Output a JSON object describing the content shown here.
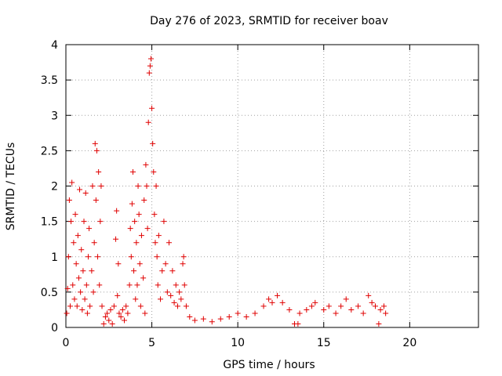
{
  "chart_data": {
    "type": "scatter",
    "title": "Day 276 of 2023, SRMTID for receiver boav",
    "xlabel": "GPS time / hours",
    "ylabel": "SRMTID / TECUs",
    "xlim": [
      0,
      24
    ],
    "ylim": [
      0,
      4
    ],
    "xticks": [
      0,
      5,
      10,
      15,
      20
    ],
    "yticks": [
      0,
      0.5,
      1,
      1.5,
      2,
      2.5,
      3,
      3.5,
      4
    ],
    "grid": true,
    "marker": "plus",
    "color": "#e00000",
    "series": [
      {
        "name": "SRMTID",
        "points": [
          [
            0.05,
            0.2
          ],
          [
            0.1,
            0.55
          ],
          [
            0.15,
            1.0
          ],
          [
            0.2,
            1.8
          ],
          [
            0.25,
            0.3
          ],
          [
            0.3,
            1.5
          ],
          [
            0.35,
            2.05
          ],
          [
            0.4,
            0.6
          ],
          [
            0.45,
            1.2
          ],
          [
            0.5,
            0.4
          ],
          [
            0.55,
            1.6
          ],
          [
            0.6,
            0.9
          ],
          [
            0.65,
            0.3
          ],
          [
            0.7,
            1.3
          ],
          [
            0.75,
            0.7
          ],
          [
            0.8,
            1.95
          ],
          [
            0.85,
            0.5
          ],
          [
            0.9,
            1.1
          ],
          [
            0.95,
            0.25
          ],
          [
            1.0,
            0.8
          ],
          [
            1.05,
            1.5
          ],
          [
            1.1,
            0.4
          ],
          [
            1.15,
            1.9
          ],
          [
            1.2,
            0.6
          ],
          [
            1.25,
            0.2
          ],
          [
            1.3,
            1.0
          ],
          [
            1.35,
            1.4
          ],
          [
            1.4,
            0.3
          ],
          [
            1.5,
            0.8
          ],
          [
            1.55,
            2.0
          ],
          [
            1.6,
            0.5
          ],
          [
            1.65,
            1.2
          ],
          [
            1.7,
            2.6
          ],
          [
            1.75,
            1.8
          ],
          [
            1.8,
            2.5
          ],
          [
            1.85,
            1.0
          ],
          [
            1.9,
            2.2
          ],
          [
            1.95,
            0.6
          ],
          [
            2.0,
            1.5
          ],
          [
            2.05,
            2.0
          ],
          [
            2.1,
            0.3
          ],
          [
            2.2,
            0.05
          ],
          [
            2.3,
            0.15
          ],
          [
            2.4,
            0.2
          ],
          [
            2.5,
            0.1
          ],
          [
            2.6,
            0.25
          ],
          [
            2.7,
            0.05
          ],
          [
            2.8,
            0.3
          ],
          [
            2.9,
            1.25
          ],
          [
            2.95,
            1.65
          ],
          [
            3.0,
            0.45
          ],
          [
            3.05,
            0.9
          ],
          [
            3.1,
            0.2
          ],
          [
            3.2,
            0.15
          ],
          [
            3.3,
            0.25
          ],
          [
            3.4,
            0.1
          ],
          [
            3.5,
            0.3
          ],
          [
            3.6,
            0.2
          ],
          [
            3.7,
            0.6
          ],
          [
            3.75,
            1.4
          ],
          [
            3.8,
            1.0
          ],
          [
            3.85,
            1.75
          ],
          [
            3.9,
            2.2
          ],
          [
            3.95,
            0.8
          ],
          [
            4.0,
            1.5
          ],
          [
            4.05,
            0.4
          ],
          [
            4.1,
            1.2
          ],
          [
            4.15,
            0.6
          ],
          [
            4.2,
            2.0
          ],
          [
            4.25,
            1.6
          ],
          [
            4.3,
            0.9
          ],
          [
            4.35,
            0.3
          ],
          [
            4.4,
            1.3
          ],
          [
            4.5,
            0.7
          ],
          [
            4.55,
            1.8
          ],
          [
            4.6,
            0.2
          ],
          [
            4.65,
            2.3
          ],
          [
            4.7,
            2.0
          ],
          [
            4.75,
            1.4
          ],
          [
            4.8,
            2.9
          ],
          [
            4.85,
            3.6
          ],
          [
            4.9,
            3.7
          ],
          [
            4.95,
            3.8
          ],
          [
            5.0,
            3.1
          ],
          [
            5.05,
            2.6
          ],
          [
            5.1,
            2.2
          ],
          [
            5.15,
            1.6
          ],
          [
            5.2,
            1.2
          ],
          [
            5.25,
            2.0
          ],
          [
            5.3,
            1.0
          ],
          [
            5.35,
            0.6
          ],
          [
            5.4,
            1.3
          ],
          [
            5.5,
            0.4
          ],
          [
            5.6,
            0.8
          ],
          [
            5.7,
            1.5
          ],
          [
            5.8,
            0.9
          ],
          [
            5.9,
            0.5
          ],
          [
            6.0,
            1.2
          ],
          [
            6.1,
            0.45
          ],
          [
            6.2,
            0.8
          ],
          [
            6.3,
            0.35
          ],
          [
            6.4,
            0.6
          ],
          [
            6.5,
            0.3
          ],
          [
            6.6,
            0.5
          ],
          [
            6.7,
            0.4
          ],
          [
            6.8,
            0.9
          ],
          [
            6.85,
            1.0
          ],
          [
            6.9,
            0.6
          ],
          [
            7.0,
            0.3
          ],
          [
            7.2,
            0.15
          ],
          [
            7.5,
            0.1
          ],
          [
            8.0,
            0.12
          ],
          [
            8.5,
            0.08
          ],
          [
            9.0,
            0.12
          ],
          [
            9.5,
            0.15
          ],
          [
            10.0,
            0.2
          ],
          [
            10.5,
            0.15
          ],
          [
            11.0,
            0.2
          ],
          [
            11.5,
            0.3
          ],
          [
            11.8,
            0.4
          ],
          [
            12.0,
            0.35
          ],
          [
            12.3,
            0.45
          ],
          [
            12.6,
            0.35
          ],
          [
            13.0,
            0.25
          ],
          [
            13.3,
            0.05
          ],
          [
            13.5,
            0.05
          ],
          [
            13.6,
            0.2
          ],
          [
            14.0,
            0.25
          ],
          [
            14.3,
            0.3
          ],
          [
            14.5,
            0.35
          ],
          [
            15.0,
            0.25
          ],
          [
            15.3,
            0.3
          ],
          [
            15.7,
            0.2
          ],
          [
            16.0,
            0.3
          ],
          [
            16.3,
            0.4
          ],
          [
            16.6,
            0.25
          ],
          [
            17.0,
            0.3
          ],
          [
            17.3,
            0.2
          ],
          [
            17.6,
            0.45
          ],
          [
            17.8,
            0.35
          ],
          [
            18.0,
            0.3
          ],
          [
            18.2,
            0.05
          ],
          [
            18.3,
            0.25
          ],
          [
            18.5,
            0.3
          ],
          [
            18.6,
            0.2
          ]
        ]
      }
    ]
  }
}
